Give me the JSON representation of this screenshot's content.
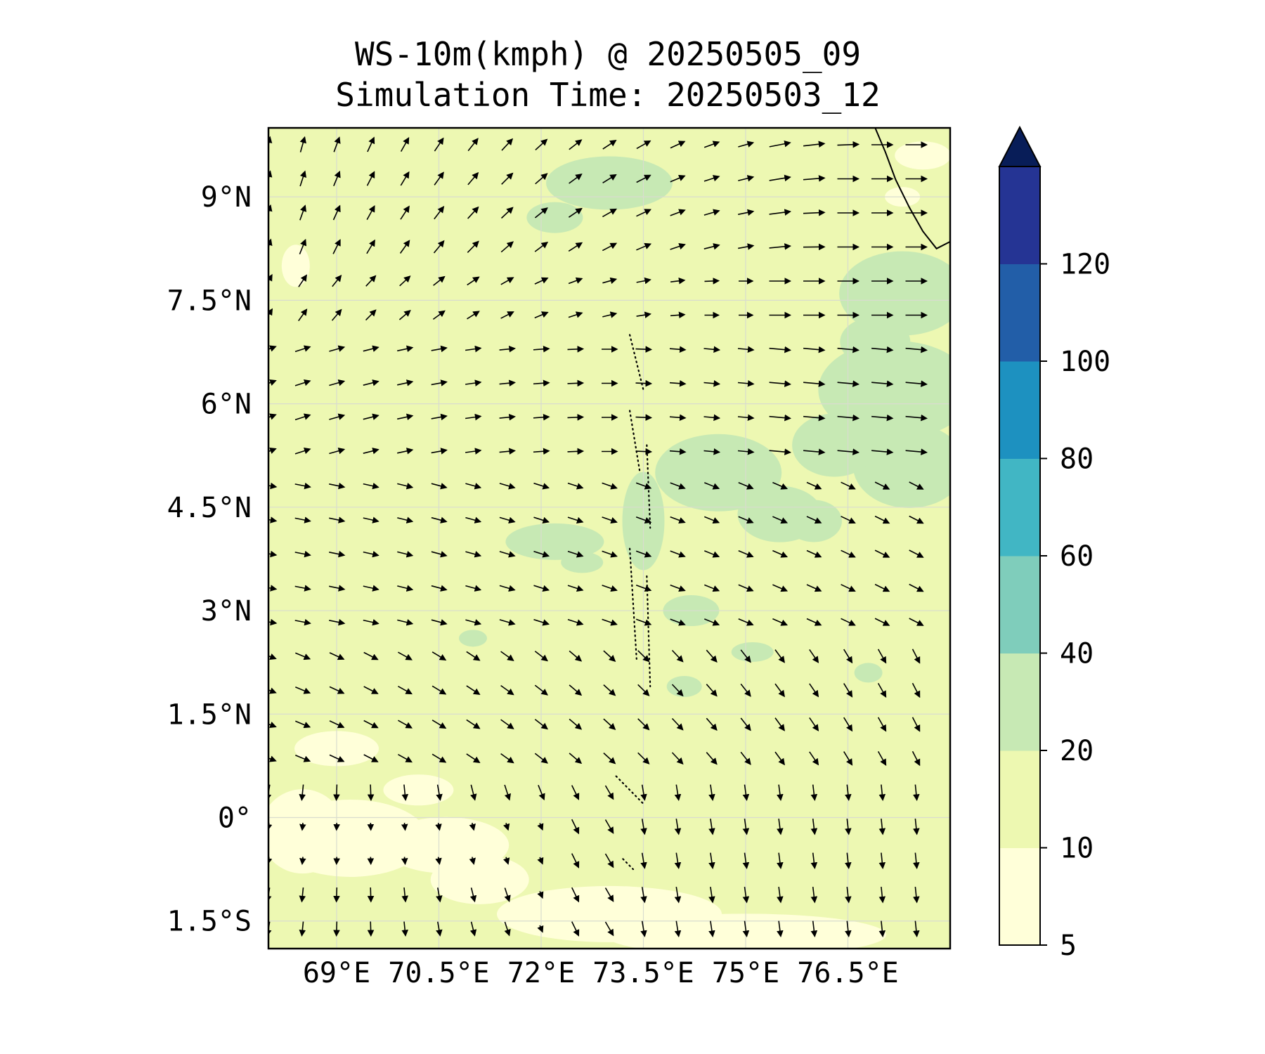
{
  "title": {
    "line1": "WS-10m(kmph) @ 20250505_09",
    "line2": "Simulation Time: 20250503_12"
  },
  "map": {
    "lon_range": [
      68,
      78
    ],
    "lat_range": [
      -1.9,
      10.0
    ],
    "lat_ticks": [
      {
        "value": 9,
        "label": "9°N"
      },
      {
        "value": 7.5,
        "label": "7.5°N"
      },
      {
        "value": 6,
        "label": "6°N"
      },
      {
        "value": 4.5,
        "label": "4.5°N"
      },
      {
        "value": 3,
        "label": "3°N"
      },
      {
        "value": 1.5,
        "label": "1.5°N"
      },
      {
        "value": 0,
        "label": "0°"
      },
      {
        "value": -1.5,
        "label": "1.5°S"
      }
    ],
    "lon_ticks": [
      {
        "value": 69,
        "label": "69°E"
      },
      {
        "value": 70.5,
        "label": "70.5°E"
      },
      {
        "value": 72,
        "label": "72°E"
      },
      {
        "value": 73.5,
        "label": "73.5°E"
      },
      {
        "value": 75,
        "label": "75°E"
      },
      {
        "value": 76.5,
        "label": "76.5°E"
      }
    ],
    "grid": true,
    "background_color": "#edf8b2",
    "coastline_color": "#000000",
    "vector_color": "#000000"
  },
  "colorbar": {
    "levels": [
      5,
      10,
      20,
      40,
      60,
      80,
      100,
      120
    ],
    "labels": [
      "5",
      "10",
      "20",
      "40",
      "60",
      "80",
      "100",
      "120"
    ],
    "colors": [
      "#ffffd9",
      "#edf8b1",
      "#c7e9b4",
      "#7fcdbb",
      "#41b6c4",
      "#1d91c0",
      "#225ea8",
      "#253494"
    ],
    "extend_color": "#081d58",
    "extend": "max"
  }
}
